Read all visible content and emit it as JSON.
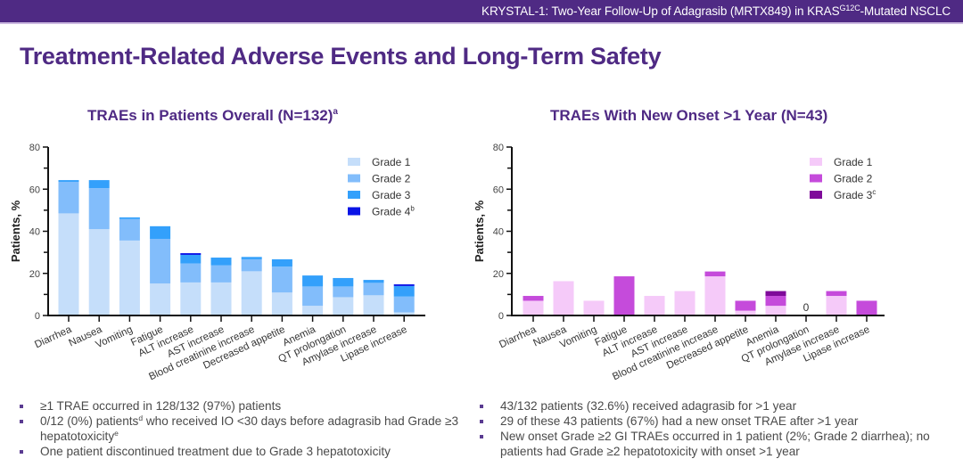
{
  "header": {
    "banner_prefix": "KRYSTAL-1: Two-Year Follow-Up of Adagrasib (MRTX849) in KRAS",
    "banner_superscript": "G12C",
    "banner_suffix": "-Mutated NSCLC",
    "page_title": "Treatment-Related Adverse Events and Long-Term Safety"
  },
  "colors": {
    "brand_purple": "#4f2a84",
    "left_grades": [
      "#c5defa",
      "#82bdfb",
      "#33a0fb",
      "#0a14e6"
    ],
    "right_grades": [
      "#f5caf9",
      "#c54bdb",
      "#7f0a9a"
    ]
  },
  "chart_data": [
    {
      "type": "bar",
      "stacked": true,
      "title": "TRAEs in Patients Overall (N=132)",
      "title_superscript": "a",
      "xlabel": "",
      "ylabel": "Patients, %",
      "ylim": [
        0,
        80
      ],
      "yticks": [
        0,
        20,
        40,
        60,
        80
      ],
      "legend_position": "top-right",
      "categories": [
        "Diarrhea",
        "Nausea",
        "Vomiting",
        "Fatigue",
        "ALT increase",
        "AST increase",
        "Blood creatinine increase",
        "Decreased appetite",
        "Anemia",
        "QT prolongation",
        "Amylase increase",
        "Lipase increase"
      ],
      "series": [
        {
          "name": "Grade 1",
          "superscript": "",
          "values": [
            48.5,
            41.0,
            35.6,
            15.2,
            15.7,
            15.7,
            21.0,
            10.9,
            4.6,
            8.7,
            9.6,
            1.5
          ]
        },
        {
          "name": "Grade 2",
          "superscript": "",
          "values": [
            15.0,
            19.5,
            10.2,
            21.2,
            9.0,
            8.1,
            5.7,
            12.3,
            9.2,
            5.1,
            5.9,
            7.5
          ]
        },
        {
          "name": "Grade 3",
          "superscript": "",
          "values": [
            0.8,
            3.8,
            0.8,
            6.0,
            4.1,
            3.7,
            1.1,
            3.5,
            5.2,
            4.0,
            1.4,
            5.0
          ]
        },
        {
          "name": "Grade 4",
          "superscript": "b",
          "values": [
            0,
            0,
            0,
            0,
            0.8,
            0,
            0,
            0,
            0,
            0,
            0,
            0.8
          ]
        }
      ],
      "annotations": []
    },
    {
      "type": "bar",
      "stacked": true,
      "title": "TRAEs With New Onset >1 Year (N=43)",
      "title_superscript": "",
      "xlabel": "",
      "ylabel": "Patients, %",
      "ylim": [
        0,
        80
      ],
      "yticks": [
        0,
        20,
        40,
        60,
        80
      ],
      "legend_position": "top-right",
      "categories": [
        "Diarrhea",
        "Nausea",
        "Vomiting",
        "Fatigue",
        "ALT increase",
        "AST increase",
        "Blood creatinine increase",
        "Decreased appetite",
        "Anemia",
        "QT prolongation",
        "Amylase increase",
        "Lipase increase"
      ],
      "series": [
        {
          "name": "Grade 1",
          "superscript": "",
          "values": [
            7.0,
            16.3,
            7.0,
            0,
            9.3,
            11.6,
            18.6,
            2.3,
            4.6,
            0,
            9.3,
            0
          ]
        },
        {
          "name": "Grade 2",
          "superscript": "",
          "values": [
            2.3,
            0,
            0,
            18.6,
            0,
            0,
            2.3,
            4.7,
            4.7,
            0,
            2.3,
            7.0
          ]
        },
        {
          "name": "Grade 3",
          "superscript": "c",
          "values": [
            0,
            0,
            0,
            0,
            0,
            0,
            0,
            0,
            2.3,
            0,
            0,
            0
          ]
        }
      ],
      "annotations": [
        {
          "category": "QT prolongation",
          "text": "0"
        }
      ]
    }
  ],
  "bullets": {
    "left": [
      {
        "text": "≥1 TRAE occurred in 128/132 (97%) patients"
      },
      {
        "text_a": "0/12 (0%) patients",
        "sup_a": "d",
        "text_b": " who received IO <30 days before adagrasib had Grade ≥3 hepatotoxicity",
        "sup_b": "e"
      },
      {
        "text": "One patient discontinued treatment due to Grade 3 hepatotoxicity"
      }
    ],
    "right": [
      {
        "text": "43/132 patients (32.6%) received adagrasib for >1 year"
      },
      {
        "text": "29 of these 43 patients (67%) had a new onset TRAE after >1 year"
      },
      {
        "text": "New onset Grade ≥2 GI TRAEs occurred in 1 patient (2%; Grade 2 diarrhea); no patients had Grade ≥2 hepatotoxicity with onset >1 year"
      }
    ]
  }
}
